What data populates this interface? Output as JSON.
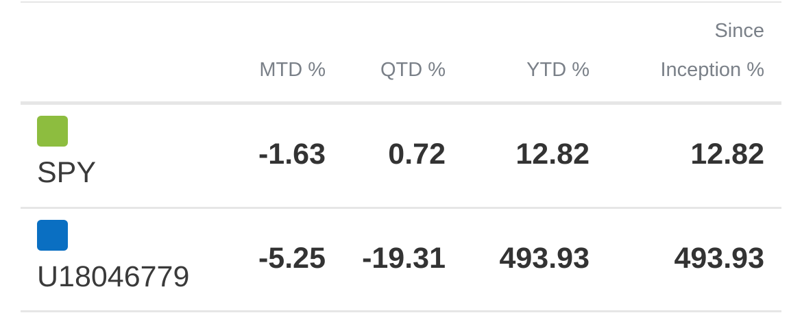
{
  "table": {
    "headers": {
      "mtd": "MTD %",
      "qtd": "QTD %",
      "ytd": "YTD %",
      "since_line1": "Since",
      "since_line2": "Inception %"
    },
    "rows": [
      {
        "label": "SPY",
        "swatch_color": "#8dbd3f",
        "mtd": "-1.63",
        "qtd": "0.72",
        "ytd": "12.82",
        "since": "12.82"
      },
      {
        "label": "U18046779",
        "swatch_color": "#0a6fc2",
        "mtd": "-5.25",
        "qtd": "-19.31",
        "ytd": "493.93",
        "since": "493.93"
      }
    ]
  }
}
